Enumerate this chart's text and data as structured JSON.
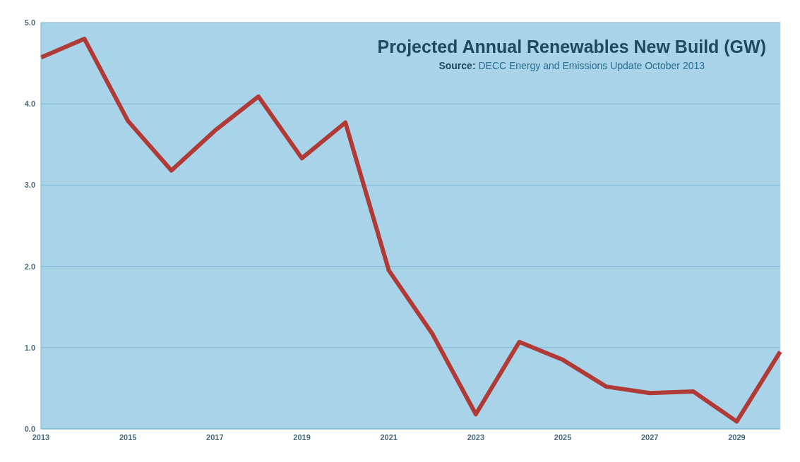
{
  "chart_data": {
    "type": "line",
    "title": "Projected Annual Renewables New Build (GW)",
    "subtitle": "Source:  DECC Energy and Emissions Update October 2013",
    "categories": [
      "2013",
      null,
      "2015",
      null,
      "2017",
      null,
      "2019",
      null,
      "2021",
      null,
      "2023",
      null,
      "2025",
      null,
      "2027",
      null,
      "2029",
      null
    ],
    "series": [
      {
        "color": "#b03a35",
        "values": [
          4.57,
          4.8,
          3.79,
          3.18,
          3.67,
          4.09,
          3.33,
          3.77,
          1.95,
          1.17,
          0.18,
          1.07,
          0.85,
          0.52,
          0.44,
          0.46,
          0.09,
          0.95
        ]
      }
    ],
    "ylim": [
      0,
      5
    ],
    "yticks": [
      {
        "value": 0,
        "label": "0.0"
      },
      {
        "value": 1,
        "label": "1.0"
      },
      {
        "value": 2,
        "label": "2.0"
      },
      {
        "value": 3,
        "label": "3.0"
      },
      {
        "value": 4,
        "label": "4.0"
      },
      {
        "value": 5,
        "label": "5.0"
      }
    ],
    "grid": "y",
    "legend": false,
    "marker": "none",
    "line_style": "solid"
  }
}
